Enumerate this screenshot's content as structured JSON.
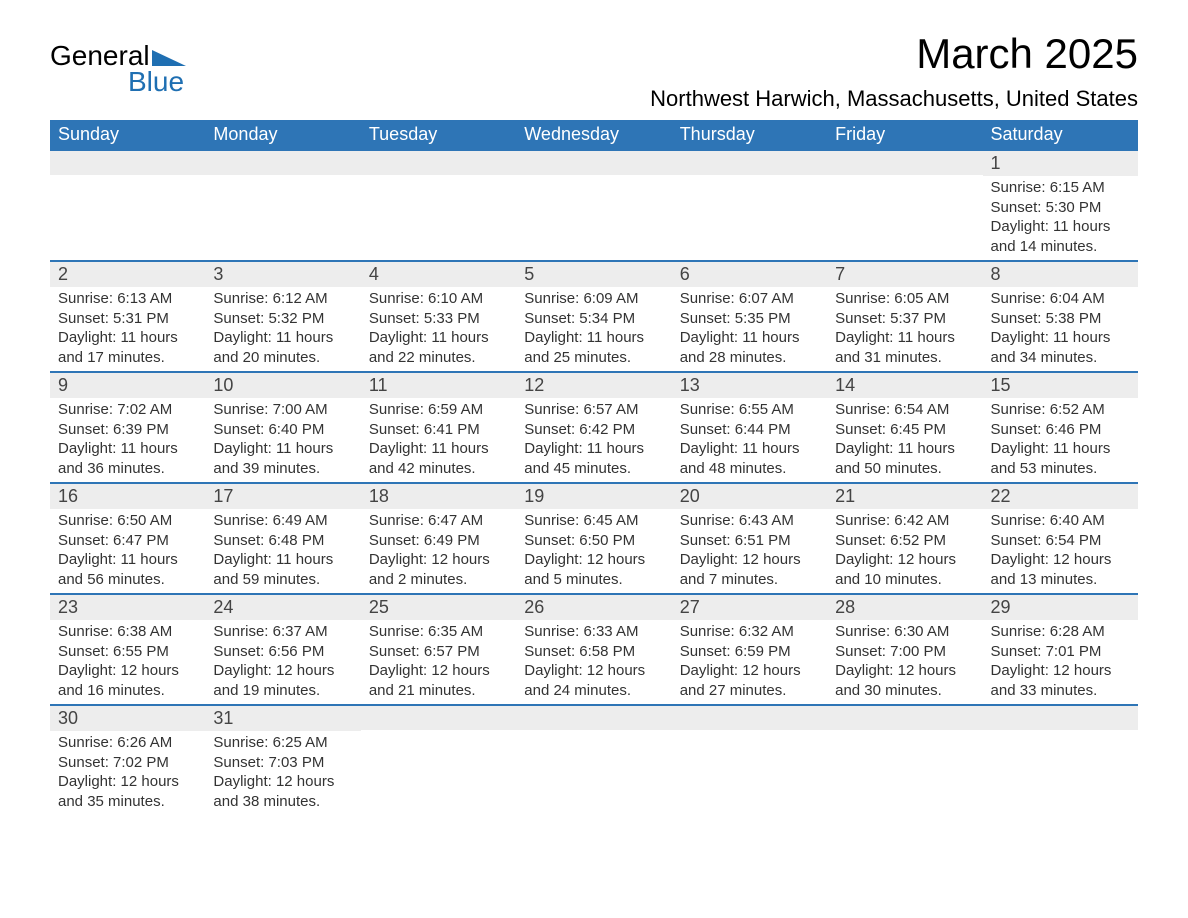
{
  "logo": {
    "text_general": "General",
    "text_blue": "Blue",
    "brand_color": "#1f6fb2"
  },
  "header": {
    "title": "March 2025",
    "location": "Northwest Harwich, Massachusetts, United States"
  },
  "colors": {
    "header_bg": "#2e75b6",
    "header_text": "#ffffff",
    "daynum_bg": "#ededed",
    "border": "#2e75b6",
    "text": "#333333",
    "background": "#ffffff"
  },
  "typography": {
    "title_fontsize": 42,
    "location_fontsize": 22,
    "dayheader_fontsize": 18,
    "daynum_fontsize": 18,
    "body_fontsize": 15
  },
  "calendar": {
    "day_names": [
      "Sunday",
      "Monday",
      "Tuesday",
      "Wednesday",
      "Thursday",
      "Friday",
      "Saturday"
    ],
    "weeks": [
      [
        {
          "n": "",
          "sr": "",
          "ss": "",
          "dl": ""
        },
        {
          "n": "",
          "sr": "",
          "ss": "",
          "dl": ""
        },
        {
          "n": "",
          "sr": "",
          "ss": "",
          "dl": ""
        },
        {
          "n": "",
          "sr": "",
          "ss": "",
          "dl": ""
        },
        {
          "n": "",
          "sr": "",
          "ss": "",
          "dl": ""
        },
        {
          "n": "",
          "sr": "",
          "ss": "",
          "dl": ""
        },
        {
          "n": "1",
          "sr": "Sunrise: 6:15 AM",
          "ss": "Sunset: 5:30 PM",
          "dl": "Daylight: 11 hours and 14 minutes."
        }
      ],
      [
        {
          "n": "2",
          "sr": "Sunrise: 6:13 AM",
          "ss": "Sunset: 5:31 PM",
          "dl": "Daylight: 11 hours and 17 minutes."
        },
        {
          "n": "3",
          "sr": "Sunrise: 6:12 AM",
          "ss": "Sunset: 5:32 PM",
          "dl": "Daylight: 11 hours and 20 minutes."
        },
        {
          "n": "4",
          "sr": "Sunrise: 6:10 AM",
          "ss": "Sunset: 5:33 PM",
          "dl": "Daylight: 11 hours and 22 minutes."
        },
        {
          "n": "5",
          "sr": "Sunrise: 6:09 AM",
          "ss": "Sunset: 5:34 PM",
          "dl": "Daylight: 11 hours and 25 minutes."
        },
        {
          "n": "6",
          "sr": "Sunrise: 6:07 AM",
          "ss": "Sunset: 5:35 PM",
          "dl": "Daylight: 11 hours and 28 minutes."
        },
        {
          "n": "7",
          "sr": "Sunrise: 6:05 AM",
          "ss": "Sunset: 5:37 PM",
          "dl": "Daylight: 11 hours and 31 minutes."
        },
        {
          "n": "8",
          "sr": "Sunrise: 6:04 AM",
          "ss": "Sunset: 5:38 PM",
          "dl": "Daylight: 11 hours and 34 minutes."
        }
      ],
      [
        {
          "n": "9",
          "sr": "Sunrise: 7:02 AM",
          "ss": "Sunset: 6:39 PM",
          "dl": "Daylight: 11 hours and 36 minutes."
        },
        {
          "n": "10",
          "sr": "Sunrise: 7:00 AM",
          "ss": "Sunset: 6:40 PM",
          "dl": "Daylight: 11 hours and 39 minutes."
        },
        {
          "n": "11",
          "sr": "Sunrise: 6:59 AM",
          "ss": "Sunset: 6:41 PM",
          "dl": "Daylight: 11 hours and 42 minutes."
        },
        {
          "n": "12",
          "sr": "Sunrise: 6:57 AM",
          "ss": "Sunset: 6:42 PM",
          "dl": "Daylight: 11 hours and 45 minutes."
        },
        {
          "n": "13",
          "sr": "Sunrise: 6:55 AM",
          "ss": "Sunset: 6:44 PM",
          "dl": "Daylight: 11 hours and 48 minutes."
        },
        {
          "n": "14",
          "sr": "Sunrise: 6:54 AM",
          "ss": "Sunset: 6:45 PM",
          "dl": "Daylight: 11 hours and 50 minutes."
        },
        {
          "n": "15",
          "sr": "Sunrise: 6:52 AM",
          "ss": "Sunset: 6:46 PM",
          "dl": "Daylight: 11 hours and 53 minutes."
        }
      ],
      [
        {
          "n": "16",
          "sr": "Sunrise: 6:50 AM",
          "ss": "Sunset: 6:47 PM",
          "dl": "Daylight: 11 hours and 56 minutes."
        },
        {
          "n": "17",
          "sr": "Sunrise: 6:49 AM",
          "ss": "Sunset: 6:48 PM",
          "dl": "Daylight: 11 hours and 59 minutes."
        },
        {
          "n": "18",
          "sr": "Sunrise: 6:47 AM",
          "ss": "Sunset: 6:49 PM",
          "dl": "Daylight: 12 hours and 2 minutes."
        },
        {
          "n": "19",
          "sr": "Sunrise: 6:45 AM",
          "ss": "Sunset: 6:50 PM",
          "dl": "Daylight: 12 hours and 5 minutes."
        },
        {
          "n": "20",
          "sr": "Sunrise: 6:43 AM",
          "ss": "Sunset: 6:51 PM",
          "dl": "Daylight: 12 hours and 7 minutes."
        },
        {
          "n": "21",
          "sr": "Sunrise: 6:42 AM",
          "ss": "Sunset: 6:52 PM",
          "dl": "Daylight: 12 hours and 10 minutes."
        },
        {
          "n": "22",
          "sr": "Sunrise: 6:40 AM",
          "ss": "Sunset: 6:54 PM",
          "dl": "Daylight: 12 hours and 13 minutes."
        }
      ],
      [
        {
          "n": "23",
          "sr": "Sunrise: 6:38 AM",
          "ss": "Sunset: 6:55 PM",
          "dl": "Daylight: 12 hours and 16 minutes."
        },
        {
          "n": "24",
          "sr": "Sunrise: 6:37 AM",
          "ss": "Sunset: 6:56 PM",
          "dl": "Daylight: 12 hours and 19 minutes."
        },
        {
          "n": "25",
          "sr": "Sunrise: 6:35 AM",
          "ss": "Sunset: 6:57 PM",
          "dl": "Daylight: 12 hours and 21 minutes."
        },
        {
          "n": "26",
          "sr": "Sunrise: 6:33 AM",
          "ss": "Sunset: 6:58 PM",
          "dl": "Daylight: 12 hours and 24 minutes."
        },
        {
          "n": "27",
          "sr": "Sunrise: 6:32 AM",
          "ss": "Sunset: 6:59 PM",
          "dl": "Daylight: 12 hours and 27 minutes."
        },
        {
          "n": "28",
          "sr": "Sunrise: 6:30 AM",
          "ss": "Sunset: 7:00 PM",
          "dl": "Daylight: 12 hours and 30 minutes."
        },
        {
          "n": "29",
          "sr": "Sunrise: 6:28 AM",
          "ss": "Sunset: 7:01 PM",
          "dl": "Daylight: 12 hours and 33 minutes."
        }
      ],
      [
        {
          "n": "30",
          "sr": "Sunrise: 6:26 AM",
          "ss": "Sunset: 7:02 PM",
          "dl": "Daylight: 12 hours and 35 minutes."
        },
        {
          "n": "31",
          "sr": "Sunrise: 6:25 AM",
          "ss": "Sunset: 7:03 PM",
          "dl": "Daylight: 12 hours and 38 minutes."
        },
        {
          "n": "",
          "sr": "",
          "ss": "",
          "dl": ""
        },
        {
          "n": "",
          "sr": "",
          "ss": "",
          "dl": ""
        },
        {
          "n": "",
          "sr": "",
          "ss": "",
          "dl": ""
        },
        {
          "n": "",
          "sr": "",
          "ss": "",
          "dl": ""
        },
        {
          "n": "",
          "sr": "",
          "ss": "",
          "dl": ""
        }
      ]
    ]
  }
}
